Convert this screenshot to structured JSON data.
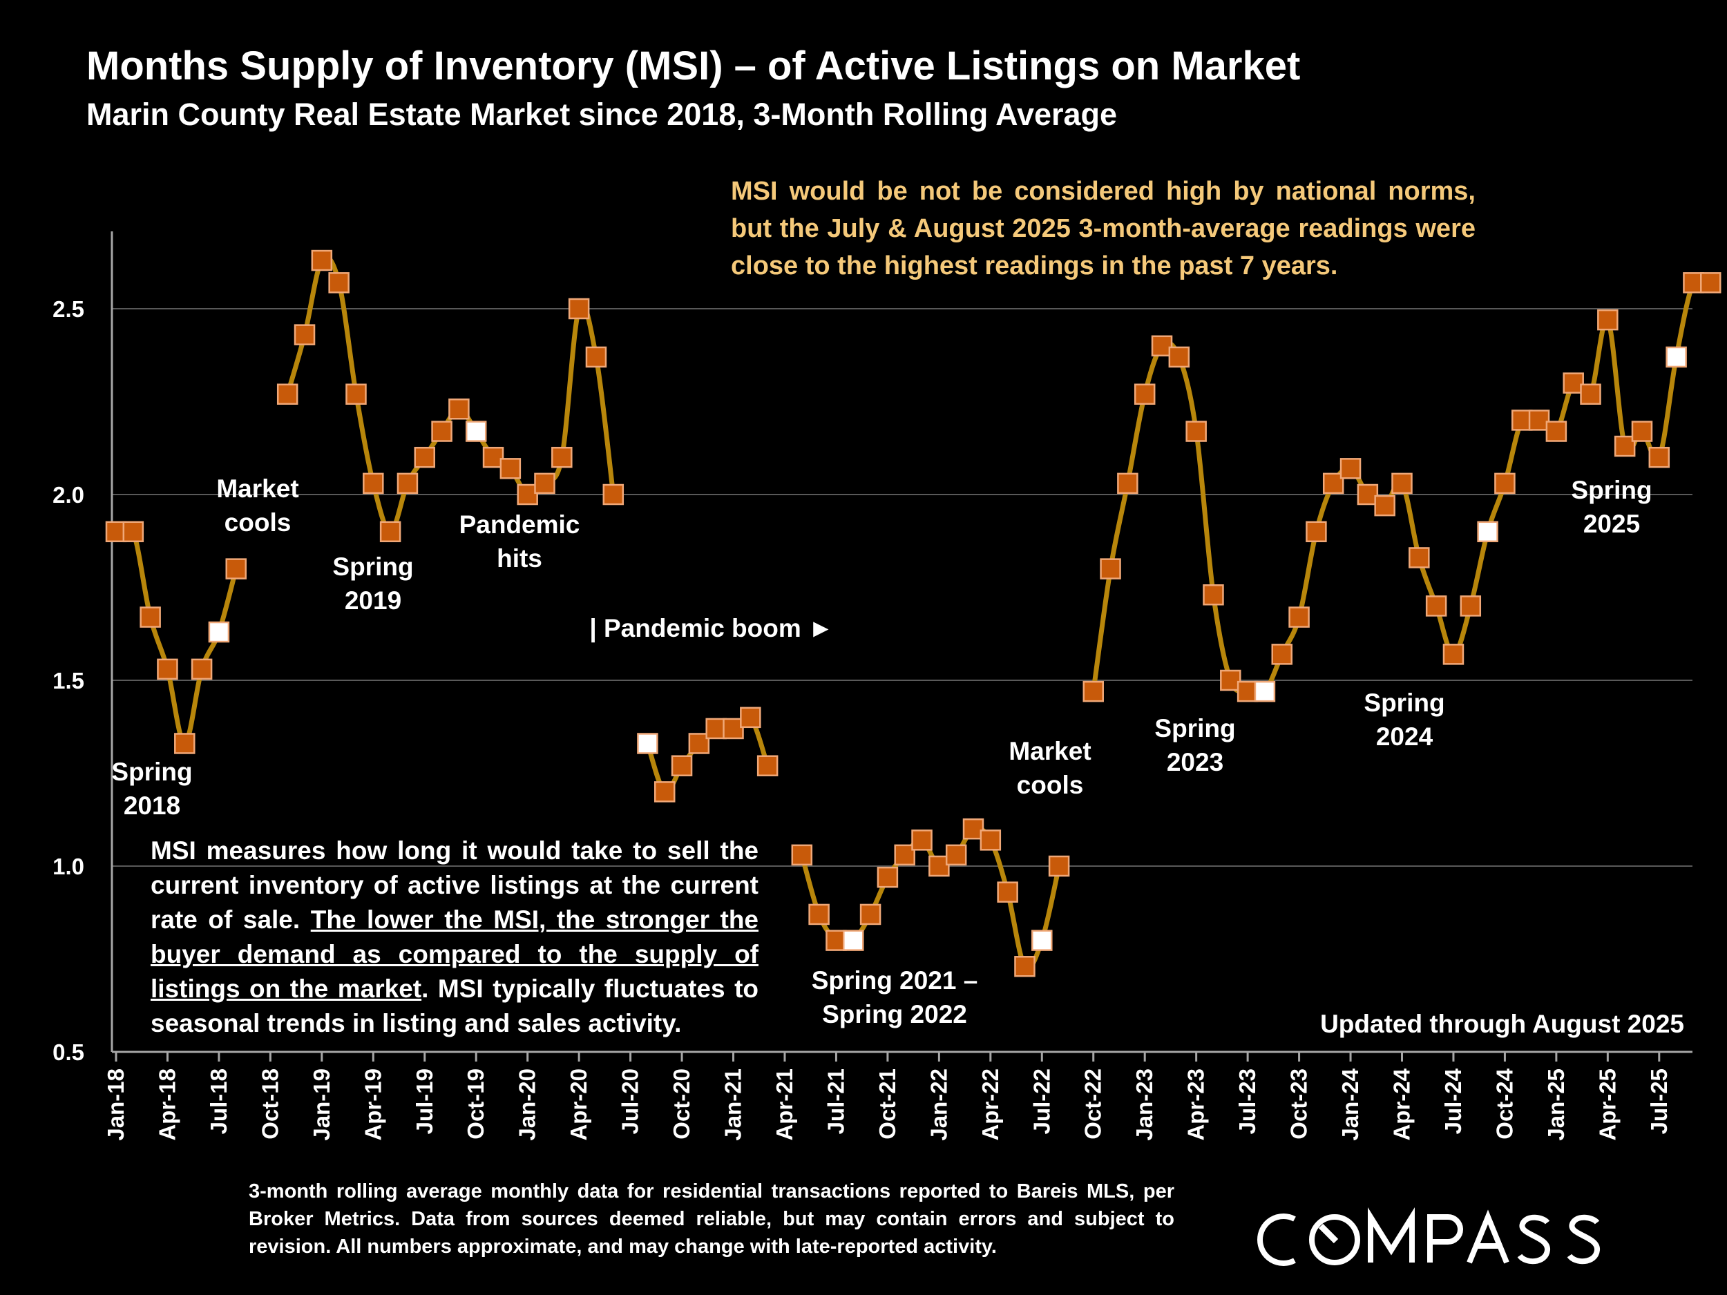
{
  "title": "Months Supply of Inventory (MSI) – of Active Listings on Market",
  "subtitle": "Marin County Real Estate Market since 2018, 3-Month Rolling Average",
  "note_gold": "MSI would be not be considered high by national norms, but the July & August 2025 3-month-average readings were close to the highest readings in the past 7 years.",
  "msi_definition": {
    "part1": "MSI measures how long it would take to sell the current inventory of active listings at the current rate of sale. ",
    "underlined": "The lower the MSI, the stronger the buyer demand as compared to the supply of listings on the market",
    "part2": ". MSI typically fluctuates to seasonal trends in listing and sales activity."
  },
  "updated": "Updated through August 2025",
  "footnote": "3-month rolling average monthly data for residential transactions reported to Bareis MLS, per Broker Metrics. Data from sources deemed reliable, but may contain errors and subject to revision. All numbers approximate, and may change with late-reported activity.",
  "logo_text": "COMPASS",
  "colors": {
    "background": "#000000",
    "line": "#b8860b",
    "marker_fill": "#c85a0a",
    "marker_stroke": "#f0a878",
    "marker_highlight_fill": "#ffffff",
    "note_text": "#f5c97a",
    "grid": "#595959"
  },
  "chart_data": {
    "type": "line",
    "ylim": [
      0.5,
      2.7
    ],
    "yticks": [
      0.5,
      1.0,
      1.5,
      2.0,
      2.5
    ],
    "ytick_labels": [
      "0.5",
      "1.0",
      "1.5",
      "2.0",
      "2.5"
    ],
    "grid": "horizontal",
    "xtick_labels": [
      "Jan-18",
      "Apr-18",
      "Jul-18",
      "Oct-18",
      "Jan-19",
      "Apr-19",
      "Jul-19",
      "Oct-19",
      "Jan-20",
      "Apr-20",
      "Jul-20",
      "Oct-20",
      "Jan-21",
      "Apr-21",
      "Jul-21",
      "Oct-21",
      "Jan-22",
      "Apr-22",
      "Jul-22",
      "Oct-22",
      "Jan-23",
      "Apr-23",
      "Jul-23",
      "Oct-23",
      "Jan-24",
      "Apr-24",
      "Jul-24",
      "Oct-24",
      "Jan-25",
      "Apr-25",
      "Jul-25"
    ],
    "xtick_interval_months": 3,
    "start_label": "Jan-18",
    "values": [
      1.9,
      1.9,
      1.67,
      1.53,
      1.33,
      1.53,
      1.63,
      1.8,
      null,
      null,
      2.27,
      2.43,
      2.63,
      2.57,
      2.27,
      2.03,
      1.9,
      2.03,
      2.1,
      2.17,
      2.23,
      2.17,
      2.1,
      2.07,
      2.0,
      2.03,
      2.1,
      2.5,
      2.37,
      2.0,
      null,
      1.33,
      1.2,
      1.27,
      1.33,
      1.37,
      1.37,
      1.4,
      1.27,
      null,
      1.03,
      0.87,
      0.8,
      0.8,
      0.87,
      0.97,
      1.03,
      1.07,
      1.0,
      1.03,
      1.1,
      1.07,
      0.93,
      0.73,
      0.8,
      1.0,
      null,
      1.47,
      1.8,
      2.03,
      2.27,
      2.4,
      2.37,
      2.17,
      1.73,
      1.5,
      1.47,
      1.47,
      1.57,
      1.67,
      1.9,
      2.03,
      2.07,
      2.0,
      1.97,
      2.03,
      1.83,
      1.7,
      1.57,
      1.7,
      1.9,
      2.03,
      2.2,
      2.2,
      2.17,
      2.3,
      2.27,
      2.47,
      2.13,
      2.17,
      2.1,
      2.37,
      2.57,
      2.57
    ],
    "highlighted_points": [
      "Jul-18",
      "Oct-19",
      "Aug-20",
      "Aug-21",
      "Jul-22",
      "Aug-23",
      "Sep-24",
      "Aug-25"
    ],
    "annotations": [
      {
        "lines": [
          "Spring",
          "2018"
        ],
        "month_label": "Apr-18"
      },
      {
        "lines": [
          "Market",
          "cools"
        ],
        "month_label": "Oct-18"
      },
      {
        "lines": [
          "Spring",
          "2019"
        ],
        "month_label": "Apr-19"
      },
      {
        "lines": [
          "Pandemic",
          "hits"
        ],
        "month_label": "Jan-20"
      },
      {
        "lines": [
          "| Pandemic boom ►"
        ],
        "month_label": "Jul-20"
      },
      {
        "lines": [
          "Spring 2021 –",
          "Spring 2022"
        ],
        "month_label": "Jan-22"
      },
      {
        "lines": [
          "Market",
          "cools"
        ],
        "month_label": "Jul-22"
      },
      {
        "lines": [
          "Spring",
          "2023"
        ],
        "month_label": "Apr-23"
      },
      {
        "lines": [
          "Spring",
          "2024"
        ],
        "month_label": "Apr-24"
      },
      {
        "lines": [
          "Spring",
          "2025"
        ],
        "month_label": "Apr-25"
      }
    ]
  }
}
